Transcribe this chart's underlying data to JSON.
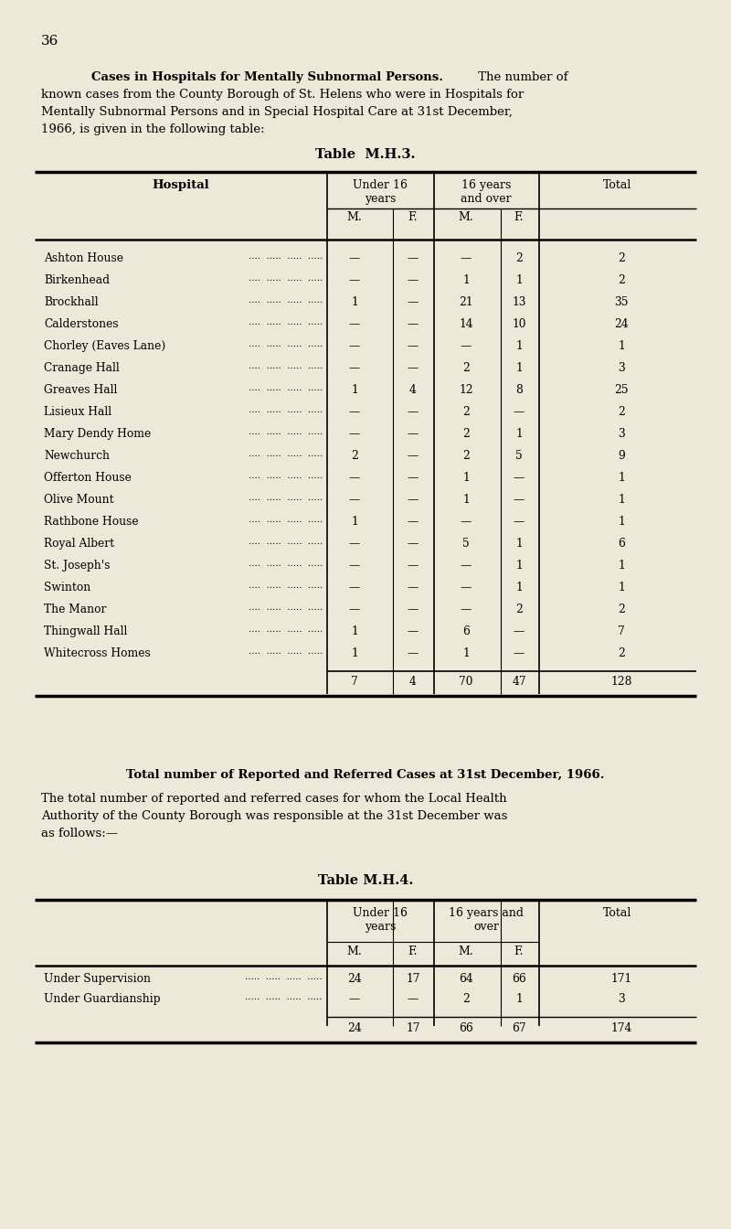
{
  "page_number": "36",
  "bg_color": "#ede8d8",
  "section1_bold": "Cases in Hospitals for Mentally Subnormal Persons.",
  "section1_lines": [
    [
      true,
      "    Cases in Hospitals for Mentally Subnormal Persons.",
      false,
      " The number of"
    ],
    [
      false,
      "known cases from the County Borough of St. Helens who were in Hospitals for",
      false,
      ""
    ],
    [
      false,
      "Mentally Subnormal Persons and in Special Hospital Care at 31st December,",
      false,
      ""
    ],
    [
      false,
      "1966, is given in the following table:",
      false,
      ""
    ]
  ],
  "table1_title": "Table  M.H.3.",
  "table1_rows": [
    [
      "Ashton House",
      "—",
      "—",
      "—",
      "2",
      "2"
    ],
    [
      "Birkenhead",
      "—",
      "—",
      "1",
      "1",
      "2"
    ],
    [
      "Brockhall",
      "1",
      "—",
      "21",
      "13",
      "35"
    ],
    [
      "Calderstones",
      "—",
      "—",
      "14",
      "10",
      "24"
    ],
    [
      "Chorley (Eaves Lane)",
      "—",
      "—",
      "—",
      "1",
      "1"
    ],
    [
      "Cranage Hall",
      "—",
      "—",
      "2",
      "1",
      "3"
    ],
    [
      "Greaves Hall",
      "1",
      "4",
      "12",
      "8",
      "25"
    ],
    [
      "Lisieux Hall",
      "—",
      "—",
      "2",
      "—",
      "2"
    ],
    [
      "Mary Dendy Home",
      "—",
      "—",
      "2",
      "1",
      "3"
    ],
    [
      "Newchurch",
      "2",
      "—",
      "2",
      "5",
      "9"
    ],
    [
      "Offerton House",
      "—",
      "—",
      "1",
      "—",
      "1"
    ],
    [
      "Olive Mount",
      "—",
      "—",
      "1",
      "—",
      "1"
    ],
    [
      "Rathbone House",
      "1",
      "—",
      "—",
      "—",
      "1"
    ],
    [
      "Royal Albert",
      "—",
      "—",
      "5",
      "1",
      "6"
    ],
    [
      "St. Joseph's",
      "—",
      "—",
      "—",
      "1",
      "1"
    ],
    [
      "Swinton",
      "—",
      "—",
      "—",
      "1",
      "1"
    ],
    [
      "The Manor",
      "—",
      "—",
      "—",
      "2",
      "2"
    ],
    [
      "Thingwall Hall",
      "1",
      "—",
      "6",
      "—",
      "7"
    ],
    [
      "Whitecross Homes",
      "1",
      "—",
      "1",
      "—",
      "2"
    ]
  ],
  "table1_totals": [
    "7",
    "4",
    "70",
    "47",
    "128"
  ],
  "section2_bold": "Total number of Reported and Referred Cases at 31st December, 1966.",
  "section2_lines": [
    "The total number of reported and referred cases for whom the Local Health",
    "Authority of the County Borough was responsible at the 31st December was",
    "as follows:—"
  ],
  "table2_title": "Table M.H.4.",
  "table2_rows": [
    [
      "Under Supervision",
      "24",
      "17",
      "64",
      "66",
      "171"
    ],
    [
      "Under Guardianship",
      "—",
      "—",
      "2",
      "1",
      "3"
    ]
  ],
  "table2_totals": [
    "24",
    "17",
    "66",
    "67",
    "174"
  ]
}
